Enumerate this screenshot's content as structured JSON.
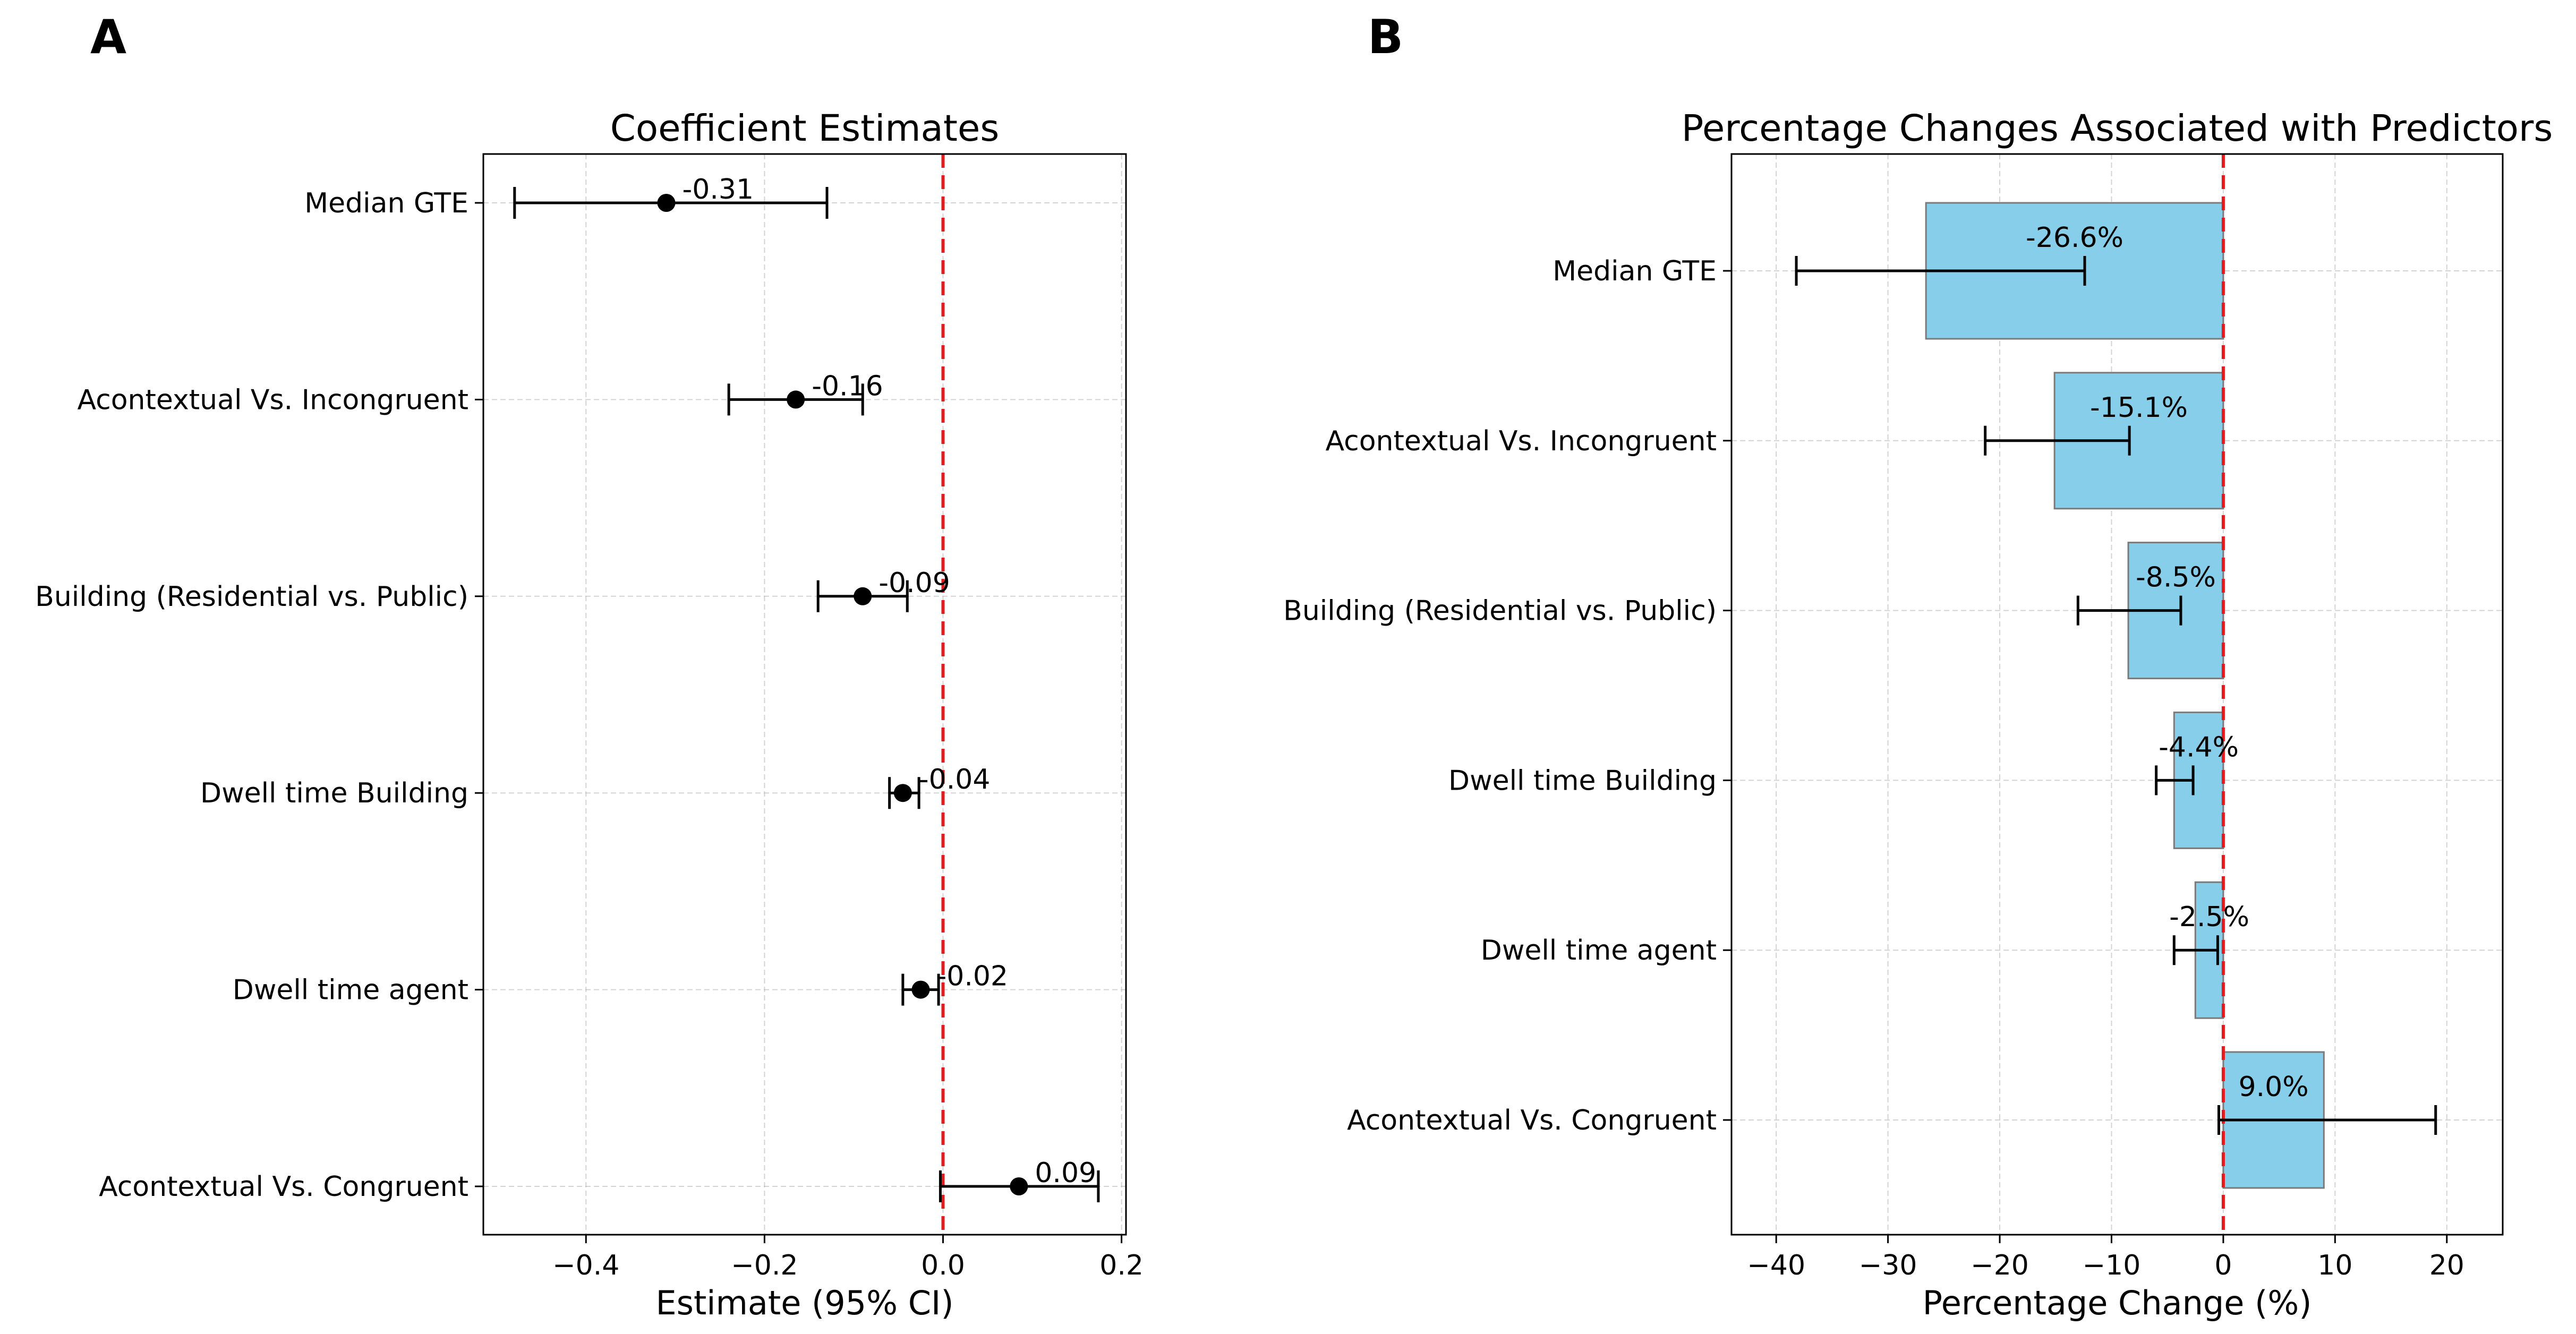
{
  "panels": {
    "a_letter": "A",
    "b_letter": "B"
  },
  "chart_data": [
    {
      "type": "scatter",
      "variant": "forest-plot",
      "title": "Coefficient Estimates",
      "xlabel": "Estimate (95% CI)",
      "ylabel": "",
      "xlim": [
        -0.515,
        0.205
      ],
      "xticks": [
        -0.4,
        -0.2,
        0.0,
        0.2
      ],
      "xtick_labels": [
        "−0.4",
        "−0.2",
        "0.0",
        "0.2"
      ],
      "reference_line": 0,
      "grid": true,
      "categories": [
        "Median GTE",
        "Acontextual Vs. Incongruent",
        "Building (Residential vs. Public)",
        "Dwell time Building",
        "Dwell time agent",
        "Acontextual Vs. Congruent"
      ],
      "estimates": [
        -0.31,
        -0.165,
        -0.09,
        -0.045,
        -0.025,
        0.085
      ],
      "ci_low": [
        -0.48,
        -0.24,
        -0.14,
        -0.06,
        -0.045,
        -0.003
      ],
      "ci_high": [
        -0.13,
        -0.09,
        -0.04,
        -0.027,
        -0.005,
        0.174
      ],
      "labels": [
        "-0.31",
        "-0.16",
        "-0.09",
        "-0.04",
        "-0.02",
        "0.09"
      ],
      "colors": {
        "marker": "#000000",
        "reference": "#e41a1c",
        "grid": "#b0b0b0"
      }
    },
    {
      "type": "bar",
      "orientation": "horizontal",
      "title": "Percentage Changes Associated with Predictors",
      "xlabel": "Percentage Change (%)",
      "ylabel": "",
      "xlim": [
        -44,
        25
      ],
      "xticks": [
        -40,
        -30,
        -20,
        -10,
        0,
        10,
        20
      ],
      "xtick_labels": [
        "−40",
        "−30",
        "−20",
        "−10",
        "0",
        "10",
        "20"
      ],
      "reference_line": 0,
      "grid": true,
      "categories": [
        "Median GTE",
        "Acontextual Vs. Incongruent",
        "Building (Residential vs. Public)",
        "Dwell time Building",
        "Dwell time agent",
        "Acontextual Vs. Congruent"
      ],
      "values": [
        -26.6,
        -15.1,
        -8.5,
        -4.4,
        -2.5,
        9.0
      ],
      "ci_low": [
        -38.2,
        -21.3,
        -13.0,
        -6.0,
        -4.4,
        -0.4
      ],
      "ci_high": [
        -12.4,
        -8.4,
        -3.8,
        -2.7,
        -0.5,
        19.0
      ],
      "labels": [
        "-26.6%",
        "-15.1%",
        "-8.5%",
        "-4.4%",
        "-2.5%",
        "9.0%"
      ],
      "colors": {
        "bar": "#87ceeb",
        "bar_edge": "#7a7a7a",
        "reference": "#e41a1c",
        "grid": "#b0b0b0"
      }
    }
  ]
}
